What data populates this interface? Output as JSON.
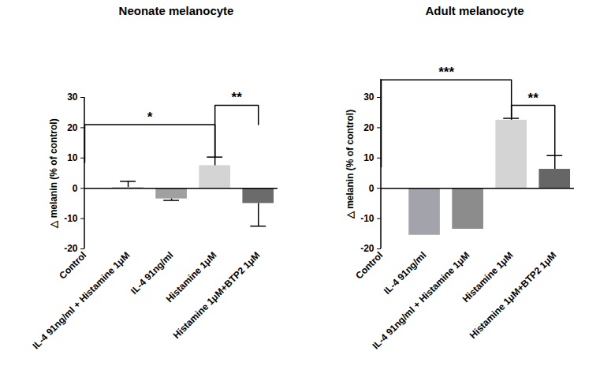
{
  "chart_data": [
    {
      "type": "bar",
      "title": "Neonate melanocyte",
      "ylabel": "△ melanin (% of control)",
      "categories": [
        "Control",
        "IL-4 91ng/ml + Histamine 1μM",
        "IL-4 91ng/ml",
        "Histamine 1μM",
        "Histamine 1μM+BTP2 1μM"
      ],
      "values": [
        0,
        0.3,
        -3.5,
        7.5,
        -5
      ],
      "errors": [
        0,
        2,
        0.5,
        2.8,
        7.5
      ],
      "colors": [
        "#ffffff",
        "#c4c4c4",
        "#a0a0a0",
        "#d4d4d4",
        "#6b6b6b"
      ],
      "ylim": [
        -20,
        30
      ],
      "yticks": [
        -20,
        -10,
        0,
        10,
        20,
        30
      ],
      "significance": [
        {
          "from": "Control",
          "to": "Histamine 1μM",
          "label": "*",
          "y": 21,
          "from_y": 8.5,
          "to_y": 10.5
        },
        {
          "from": "Histamine 1μM",
          "to": "Histamine 1μM+BTP2 1μM",
          "label": "**",
          "y": 27.4,
          "from_y": 10.5,
          "to_y": 21
        }
      ]
    },
    {
      "type": "bar",
      "title": "Adult melanocyte",
      "ylabel": "△ melanin (% of control)",
      "categories": [
        "Control",
        "IL-4 91ng/ml",
        "IL-4 91ng/ml + Histamine 1μM",
        "Histamine 1μM",
        "Histamine 1μM+BTP2 1μM"
      ],
      "values": [
        0,
        -15.5,
        -13.5,
        22.5,
        6.3
      ],
      "errors": [
        0,
        0,
        0,
        0.6,
        4.5
      ],
      "colors": [
        "#ffffff",
        "#a3a3ab",
        "#8c8c8c",
        "#d4d4d4",
        "#666666"
      ],
      "ylim": [
        -20,
        36
      ],
      "yticks": [
        -20,
        -10,
        0,
        10,
        20,
        30
      ],
      "significance": [
        {
          "from": "Control",
          "to": "Histamine 1μM",
          "label": "***",
          "y": 35.8,
          "from_y": 7,
          "to_y": 23.5
        },
        {
          "from": "Histamine 1μM",
          "to": "Histamine 1μM+BTP2 1μM",
          "label": "**",
          "y": 27.4,
          "from_y": 23.5,
          "to_y": 11
        }
      ]
    }
  ]
}
